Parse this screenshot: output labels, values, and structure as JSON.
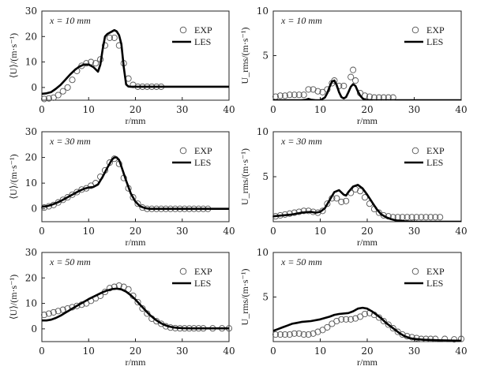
{
  "chart_data": [
    {
      "type": "line",
      "panel": "top-left",
      "title": "",
      "annotation": "x = 10 mm",
      "xlabel": "r/mm",
      "ylabel": "⟨U⟩/(m·s⁻¹)",
      "xlim": [
        0,
        40
      ],
      "ylim": [
        -5,
        30
      ],
      "xticks": [
        0,
        10,
        20,
        30,
        40
      ],
      "yticks": [
        0,
        10,
        20,
        30
      ],
      "grid": false,
      "legend": {
        "position": "top-right",
        "entries": [
          "EXP",
          "LES"
        ]
      },
      "series": [
        {
          "name": "EXP",
          "kind": "scatter",
          "x": [
            0.5,
            1.5,
            2.5,
            3.5,
            4.5,
            5.5,
            6.5,
            7.5,
            8.5,
            9.5,
            10.5,
            11.5,
            12.5,
            13.5,
            14.5,
            15.5,
            16.5,
            17.5,
            18.5,
            19.5,
            20.5,
            21.5,
            22.5,
            23.5,
            24.5,
            25.5
          ],
          "y": [
            -4.5,
            -4.3,
            -4,
            -3,
            -1.5,
            0,
            3,
            6.5,
            8.5,
            9.5,
            10,
            9.5,
            11,
            16.5,
            19.5,
            19.5,
            16.5,
            9.5,
            3.5,
            1,
            0.3,
            0.3,
            0.3,
            0.3,
            0.3,
            0.3
          ]
        },
        {
          "name": "LES",
          "kind": "line",
          "x": [
            0,
            1,
            2,
            3,
            4,
            5,
            6,
            7,
            8,
            9,
            10,
            11,
            12,
            12.5,
            13,
            13.5,
            14,
            15,
            15.5,
            16,
            16.5,
            17,
            17.5,
            18,
            18.5,
            19,
            20,
            25,
            30,
            35,
            40
          ],
          "y": [
            -2.5,
            -2.3,
            -1.8,
            -0.5,
            1,
            3,
            5,
            6.8,
            8.2,
            9,
            9,
            8,
            6.2,
            9,
            15,
            20,
            21,
            22,
            22.5,
            22,
            20.5,
            17,
            8,
            1.2,
            0.4,
            0.3,
            0.3,
            0.3,
            0.3,
            0.3,
            0.3
          ]
        }
      ]
    },
    {
      "type": "line",
      "panel": "top-right",
      "title": "",
      "annotation": "x = 10 mm",
      "xlabel": "r/mm",
      "ylabel": "U_rms/(m·s⁻¹)",
      "xlim": [
        0,
        40
      ],
      "ylim": [
        0,
        10
      ],
      "xticks": [
        0,
        10,
        20,
        30,
        40
      ],
      "yticks": [
        5,
        10
      ],
      "ytick_labels": [
        "5",
        "10"
      ],
      "xtick_labels": [
        "0",
        "10",
        "20",
        "30",
        "40"
      ],
      "grid": false,
      "legend": {
        "position": "top-right",
        "entries": [
          "EXP",
          "LES"
        ]
      },
      "series": [
        {
          "name": "EXP",
          "kind": "scatter",
          "x": [
            0.5,
            1.5,
            2.5,
            3.5,
            4.5,
            5.5,
            6.5,
            7.5,
            8.5,
            9.5,
            10.5,
            11.5,
            12.5,
            13.0,
            14.0,
            15.0,
            16.5,
            17.0,
            17.5,
            18.5,
            19.5,
            20.5,
            21.5,
            22.5,
            23.5,
            24.5,
            25.5
          ],
          "y": [
            0.4,
            0.5,
            0.5,
            0.6,
            0.6,
            0.6,
            0.6,
            1.2,
            1.2,
            1.0,
            0.9,
            1.2,
            1.9,
            2.2,
            1.6,
            1.6,
            2.6,
            3.4,
            2.2,
            0.8,
            0.5,
            0.4,
            0.3,
            0.3,
            0.3,
            0.3,
            0.3
          ]
        },
        {
          "name": "LES",
          "kind": "line",
          "x": [
            0,
            2,
            4,
            6,
            7,
            7.5,
            8,
            9,
            10,
            11,
            11.5,
            12,
            12.5,
            13,
            13.5,
            14,
            14.5,
            15,
            15.5,
            16,
            16.5,
            17,
            17.5,
            18,
            18.5,
            19,
            19.5,
            20,
            21,
            25,
            30,
            40
          ],
          "y": [
            0,
            0,
            0,
            0,
            0.05,
            0.15,
            0.05,
            0,
            0,
            0.3,
            0.8,
            1.5,
            2.1,
            2.2,
            1.7,
            0.9,
            0.35,
            0.2,
            0.35,
            0.9,
            1.5,
            1.8,
            1.6,
            1.0,
            0.5,
            0.2,
            0.05,
            0,
            0,
            0,
            0,
            0
          ]
        }
      ]
    },
    {
      "type": "line",
      "panel": "middle-left",
      "title": "",
      "annotation": "x = 30 mm",
      "xlabel": "r/mm",
      "ylabel": "⟨U⟩/(m·s⁻¹)",
      "xlim": [
        0,
        40
      ],
      "ylim": [
        -5,
        30
      ],
      "xticks": [
        0,
        10,
        20,
        30,
        40
      ],
      "yticks": [
        0,
        10,
        20,
        30
      ],
      "grid": false,
      "legend": {
        "position": "top-right",
        "entries": [
          "EXP",
          "LES"
        ]
      },
      "series": [
        {
          "name": "EXP",
          "kind": "scatter",
          "x": [
            0.5,
            1.5,
            2.5,
            3.5,
            4.5,
            5.5,
            6.5,
            7.5,
            8.5,
            9.5,
            10.5,
            11.5,
            12.5,
            13.5,
            14.5,
            15.5,
            16.5,
            17.5,
            18.5,
            19.5,
            20.5,
            21.5,
            22.5,
            23.5,
            24.5,
            25.5,
            26.5,
            27.5,
            28.5,
            29.5,
            30.5,
            31.5,
            32.5,
            33.5,
            34.5,
            35.5
          ],
          "y": [
            0.5,
            1,
            1.5,
            2.5,
            3.5,
            4.5,
            5.5,
            6.5,
            7.5,
            8,
            9,
            10,
            12.5,
            15,
            18,
            19.5,
            17.5,
            12,
            8,
            4.5,
            2,
            0.5,
            0,
            0,
            0,
            0,
            0,
            0,
            0,
            0,
            0,
            0,
            0,
            0,
            0,
            0
          ]
        },
        {
          "name": "LES",
          "kind": "line",
          "x": [
            0,
            1,
            2,
            3,
            4,
            5,
            6,
            7,
            8,
            9,
            10,
            11,
            12,
            13,
            14,
            15,
            15.5,
            16,
            16.5,
            17,
            18,
            19,
            20,
            21,
            22,
            23,
            25,
            30,
            35,
            40
          ],
          "y": [
            0.8,
            1,
            1.5,
            2.2,
            3,
            4,
            5,
            6,
            7,
            7.8,
            8.3,
            8.5,
            9.5,
            12.5,
            16,
            19.2,
            20,
            20,
            19,
            16.5,
            11,
            6,
            2.8,
            1,
            0.3,
            0,
            0,
            0,
            0,
            0
          ]
        }
      ]
    },
    {
      "type": "line",
      "panel": "middle-right",
      "title": "",
      "annotation": "x = 30 mm",
      "xlabel": "r/mm",
      "ylabel": "U_rms/(m·s⁻¹)",
      "xlim": [
        0,
        40
      ],
      "ylim": [
        0,
        10
      ],
      "xticks": [
        0,
        10,
        20,
        30,
        40
      ],
      "yticks": [
        5,
        10
      ],
      "ytick_labels": [
        "5",
        "10"
      ],
      "xtick_labels": [
        "0",
        "10",
        "20",
        "30",
        "40"
      ],
      "grid": false,
      "legend": {
        "position": "top-right",
        "entries": [
          "EXP",
          "LES"
        ]
      },
      "series": [
        {
          "name": "EXP",
          "kind": "scatter",
          "x": [
            0.5,
            1.5,
            2.5,
            3.5,
            4.5,
            5.5,
            6.5,
            7.5,
            8.5,
            9.5,
            10.5,
            11.5,
            12.5,
            13.5,
            14.5,
            15.5,
            16.5,
            17.5,
            18.5,
            19.5,
            20.5,
            21.5,
            22.5,
            23.5,
            24.5,
            25.5,
            26.5,
            27.5,
            28.5,
            29.5,
            30.5,
            31.5,
            32.5,
            33.5,
            34.5,
            35.5
          ],
          "y": [
            0.6,
            0.7,
            0.8,
            0.9,
            1.0,
            1.1,
            1.2,
            1.2,
            1.1,
            1.0,
            1.2,
            2.0,
            2.6,
            2.6,
            2.2,
            2.3,
            3.2,
            3.6,
            3.4,
            2.7,
            2.0,
            1.4,
            1.0,
            0.7,
            0.6,
            0.5,
            0.5,
            0.5,
            0.5,
            0.5,
            0.5,
            0.5,
            0.5,
            0.5,
            0.5,
            0.5
          ]
        },
        {
          "name": "LES",
          "kind": "line",
          "x": [
            0,
            2,
            4,
            6,
            8,
            9,
            10,
            11,
            12,
            13,
            14,
            15,
            15.5,
            16,
            17,
            18,
            19,
            20,
            21,
            22,
            23,
            24,
            25,
            26,
            28,
            30,
            35,
            40
          ],
          "y": [
            0.6,
            0.7,
            0.8,
            1.0,
            1.1,
            1.0,
            1.1,
            1.5,
            2.4,
            3.3,
            3.5,
            3.0,
            2.9,
            3.3,
            3.9,
            4.1,
            3.7,
            3.0,
            2.2,
            1.4,
            0.8,
            0.5,
            0.3,
            0.15,
            0.05,
            0,
            0,
            0
          ]
        }
      ]
    },
    {
      "type": "line",
      "panel": "bottom-left",
      "title": "",
      "annotation": "x = 50 mm",
      "xlabel": "r/mm",
      "ylabel": "⟨U⟩/(m·s⁻¹)",
      "xlim": [
        0,
        40
      ],
      "ylim": [
        -5,
        30
      ],
      "xticks": [
        0,
        10,
        20,
        30,
        40
      ],
      "yticks": [
        0,
        10,
        20,
        30
      ],
      "grid": false,
      "legend": {
        "position": "top-right",
        "entries": [
          "EXP",
          "LES"
        ]
      },
      "series": [
        {
          "name": "EXP",
          "kind": "scatter",
          "x": [
            0.5,
            1.5,
            2.5,
            3.5,
            4.5,
            5.5,
            6.5,
            7.5,
            8.5,
            9.5,
            10.5,
            11.5,
            12.5,
            13.5,
            14.5,
            15.5,
            16.5,
            17.5,
            18.5,
            19.5,
            20.5,
            21.5,
            22.5,
            23.5,
            24.5,
            25.5,
            26.5,
            27.5,
            28.5,
            29.5,
            30.5,
            31.5,
            32.5,
            33.5,
            34.5,
            36.5,
            38.5,
            40
          ],
          "y": [
            5.5,
            6,
            6.5,
            7,
            7.5,
            8,
            8.5,
            9,
            9.5,
            10,
            11,
            12,
            13,
            14.5,
            16,
            16.5,
            17,
            16.5,
            15.5,
            13,
            10.5,
            8,
            6,
            4,
            3,
            2,
            1,
            0.5,
            0.3,
            0.2,
            0.2,
            0.2,
            0.2,
            0.2,
            0.2,
            0.2,
            0.2,
            0.2
          ]
        },
        {
          "name": "LES",
          "kind": "line",
          "x": [
            0,
            1,
            2,
            3,
            4,
            5,
            6,
            7,
            8,
            9,
            10,
            11,
            12,
            13,
            14,
            15,
            16,
            17,
            18,
            19,
            20,
            21,
            22,
            23,
            24,
            25,
            26,
            27,
            28,
            29,
            30,
            32,
            35,
            40
          ],
          "y": [
            3.3,
            3.3,
            3.6,
            4.3,
            5.2,
            6.3,
            7.4,
            8.5,
            9.6,
            10.6,
            11.7,
            12.6,
            13.5,
            14.4,
            15.1,
            15.6,
            15.8,
            15.5,
            14.6,
            13.2,
            11.5,
            9.5,
            7.5,
            5.6,
            4,
            2.7,
            1.7,
            1,
            0.6,
            0.4,
            0.3,
            0.2,
            0.2,
            0.2
          ]
        }
      ]
    },
    {
      "type": "line",
      "panel": "bottom-right",
      "title": "",
      "annotation": "x = 50 mm",
      "xlabel": "r/mm",
      "ylabel": "U_rms/(m·s⁻¹)",
      "xlim": [
        0,
        40
      ],
      "ylim": [
        0,
        10
      ],
      "xticks": [
        0,
        10,
        20,
        30,
        40
      ],
      "yticks": [
        5,
        10
      ],
      "ytick_labels": [
        "5",
        "10"
      ],
      "xtick_labels": [
        "0",
        "10",
        "20",
        "30",
        "40"
      ],
      "grid": false,
      "legend": {
        "position": "top-right",
        "entries": [
          "EXP",
          "LES"
        ]
      },
      "series": [
        {
          "name": "EXP",
          "kind": "scatter",
          "x": [
            0.5,
            1.5,
            2.5,
            3.5,
            4.5,
            5.5,
            6.5,
            7.5,
            8.5,
            9.5,
            10.5,
            11.5,
            12.5,
            13.5,
            14.5,
            15.5,
            16.5,
            17.5,
            18.5,
            19.5,
            20.5,
            21.5,
            22.5,
            23.5,
            24.5,
            25.5,
            26.5,
            27.5,
            28.5,
            29.5,
            30.5,
            31.5,
            32.5,
            33.5,
            34.5,
            36.5,
            38.5,
            40
          ],
          "y": [
            0.8,
            0.8,
            0.8,
            0.8,
            0.9,
            0.9,
            0.8,
            0.8,
            0.9,
            1.1,
            1.3,
            1.6,
            2.0,
            2.3,
            2.5,
            2.5,
            2.5,
            2.6,
            2.8,
            3.1,
            3.2,
            3.0,
            2.7,
            2.3,
            1.9,
            1.5,
            1.1,
            0.8,
            0.6,
            0.5,
            0.4,
            0.3,
            0.3,
            0.3,
            0.3,
            0.3,
            0.25,
            0.3
          ]
        },
        {
          "name": "LES",
          "kind": "line",
          "x": [
            0,
            1,
            2,
            3,
            4,
            5,
            6,
            8,
            10,
            12,
            13,
            14,
            16,
            17,
            18,
            19,
            20,
            21,
            22,
            23,
            24,
            25,
            26,
            27,
            28,
            29,
            30,
            32,
            35,
            40
          ],
          "y": [
            1.2,
            1.4,
            1.6,
            1.8,
            2.0,
            2.1,
            2.2,
            2.3,
            2.5,
            2.8,
            3.0,
            3.1,
            3.2,
            3.4,
            3.7,
            3.8,
            3.7,
            3.4,
            3.0,
            2.6,
            2.1,
            1.7,
            1.3,
            0.9,
            0.6,
            0.4,
            0.3,
            0.2,
            0.15,
            0.1
          ]
        }
      ]
    }
  ]
}
